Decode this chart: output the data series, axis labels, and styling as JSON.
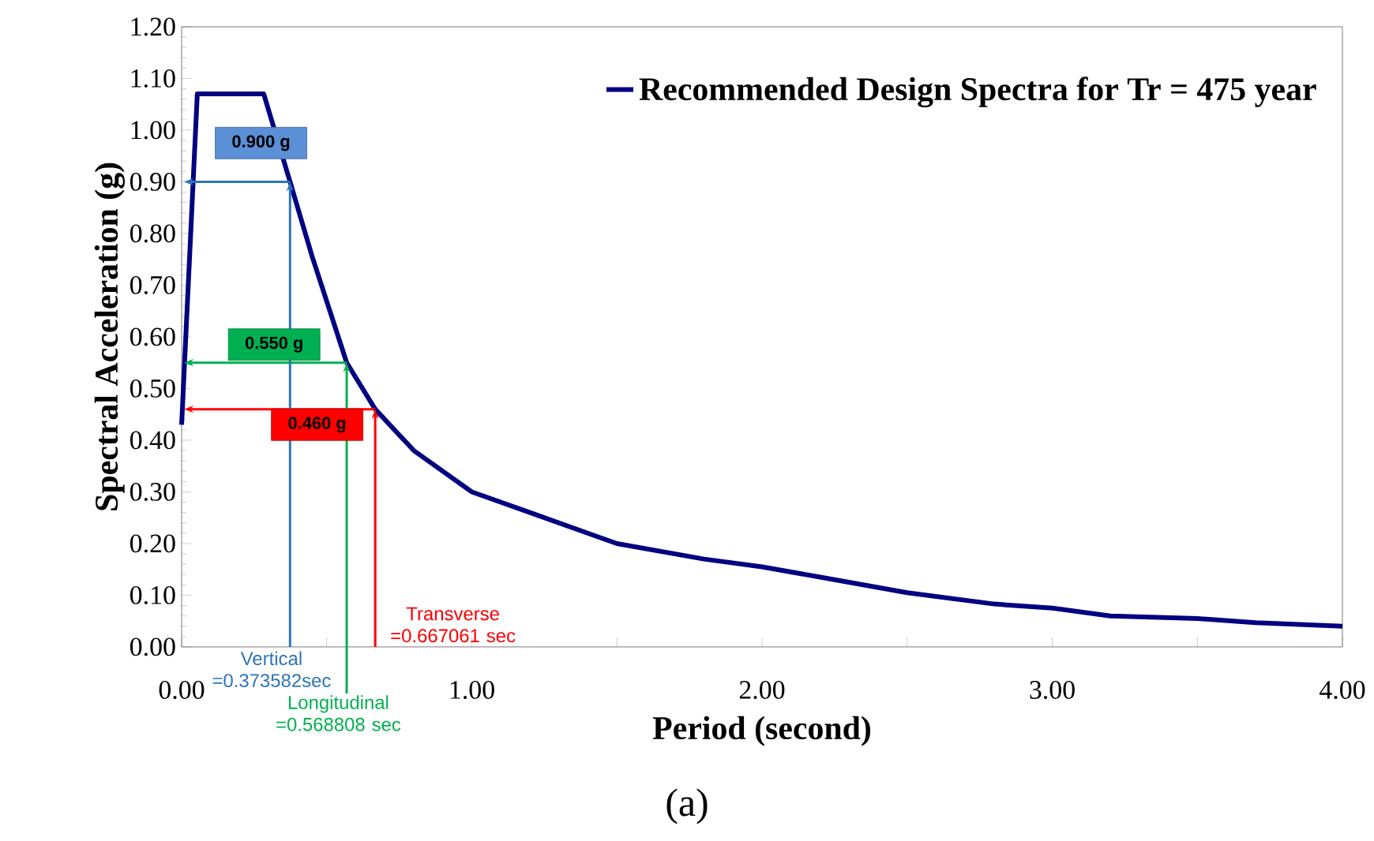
{
  "chart_data": {
    "type": "line",
    "xlabel": "Period (second)",
    "ylabel": "Spectral Acceleration (g)",
    "xlim": [
      0,
      4
    ],
    "ylim": [
      0,
      1.2
    ],
    "xticks": [
      {
        "value": 0,
        "label": "0.00"
      },
      {
        "value": 0.5,
        "label": null
      },
      {
        "value": 1,
        "label": "1.00"
      },
      {
        "value": 1.5,
        "label": null
      },
      {
        "value": 2,
        "label": "2.00"
      },
      {
        "value": 2.5,
        "label": null
      },
      {
        "value": 3,
        "label": "3.00"
      },
      {
        "value": 3.5,
        "label": null
      },
      {
        "value": 4,
        "label": "4.00"
      }
    ],
    "yticks": [
      {
        "value": 0,
        "label": "0.00"
      },
      {
        "value": 0.1,
        "label": "0.10"
      },
      {
        "value": 0.2,
        "label": "0.20"
      },
      {
        "value": 0.3,
        "label": "0.30"
      },
      {
        "value": 0.4,
        "label": "0.40"
      },
      {
        "value": 0.5,
        "label": "0.50"
      },
      {
        "value": 0.6,
        "label": "0.60"
      },
      {
        "value": 0.7,
        "label": "0.70"
      },
      {
        "value": 0.8,
        "label": "0.80"
      },
      {
        "value": 0.9,
        "label": "0.90"
      },
      {
        "value": 1.0,
        "label": "1.00"
      },
      {
        "value": 1.1,
        "label": "1.10"
      },
      {
        "value": 1.2,
        "label": "1.20"
      }
    ],
    "legend": "top right",
    "marker": "none",
    "line_style": "solid",
    "grid": false,
    "series": [
      {
        "name": "Recommended Design Spectra for Tr = 475 year",
        "color": "#000080",
        "x": [
          0,
          0.054,
          0.283,
          0.373582,
          0.45,
          0.568808,
          0.667061,
          0.8,
          1.0,
          1.2,
          1.5,
          1.8,
          2.0,
          2.2,
          2.5,
          2.8,
          3.0,
          3.2,
          3.5,
          3.7,
          4.0
        ],
        "values": [
          0.43,
          1.07,
          1.07,
          0.9,
          0.755,
          0.55,
          0.46,
          0.38,
          0.3,
          0.26,
          0.2,
          0.17,
          0.155,
          0.135,
          0.105,
          0.083,
          0.075,
          0.06,
          0.055,
          0.047,
          0.04
        ]
      }
    ],
    "annotations": [
      {
        "text": "0.900 g",
        "x": 0.373582,
        "y": 0.9
      },
      {
        "text": "0.550 g",
        "x": 0.568808,
        "y": 0.55
      },
      {
        "text": "0.460 g",
        "x": 0.667061,
        "y": 0.46
      },
      {
        "text": "Vertical =0.373582sec",
        "x": 0.373582,
        "y": 0.9
      },
      {
        "text": "Longitudinal =0.568808 sec",
        "x": 0.568808,
        "y": 0.55
      },
      {
        "text": "Transverse =0.667061 sec",
        "x": 0.667061,
        "y": 0.46
      },
      "(a)"
    ]
  }
}
